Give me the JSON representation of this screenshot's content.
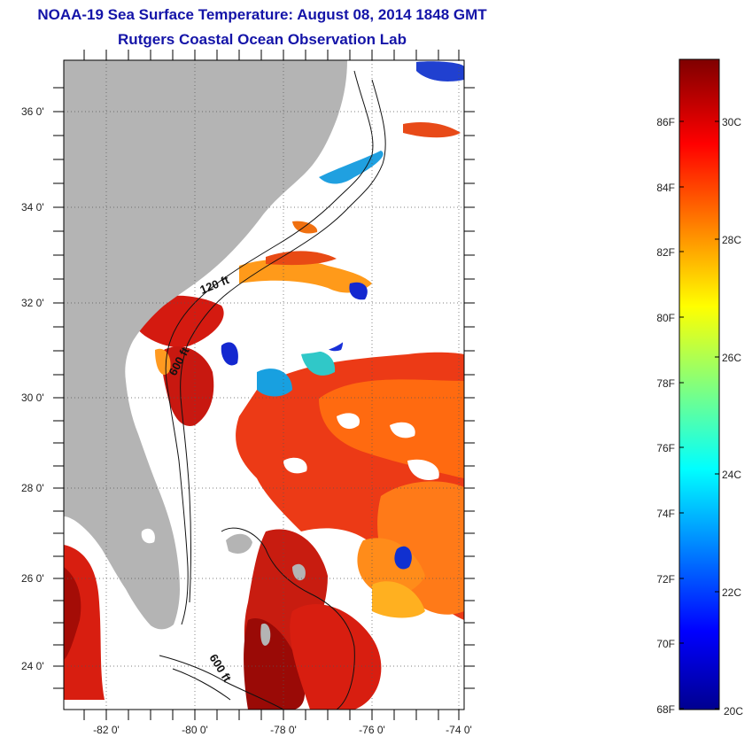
{
  "title": {
    "line1": "NOAA-19 Sea Surface Temperature:  August 08, 2014 1848 GMT",
    "line2": "Rutgers Coastal Ocean Observation Lab"
  },
  "map": {
    "lat_ticks": [
      "24 0'",
      "26 0'",
      "28 0'",
      "30 0'",
      "32 0'",
      "34 0'",
      "36 0'"
    ],
    "lon_ticks": [
      "-82 0'",
      "-80 0'",
      "-78 0'",
      "-76 0'",
      "-74 0'"
    ],
    "contour_labels": [
      "120 ft",
      "600 ft",
      "600 ft"
    ],
    "colors": {
      "land": "#b4b4b4",
      "ocean_nodata": "#ffffff"
    }
  },
  "colorbar": {
    "f_labels": [
      "68F",
      "70F",
      "72F",
      "74F",
      "76F",
      "78F",
      "80F",
      "82F",
      "84F",
      "86F"
    ],
    "c_labels": [
      "20C",
      "22C",
      "24C",
      "26C",
      "28C",
      "30C"
    ],
    "colormap": "jet",
    "range_f": [
      68,
      88
    ],
    "range_c": [
      20,
      31
    ]
  }
}
